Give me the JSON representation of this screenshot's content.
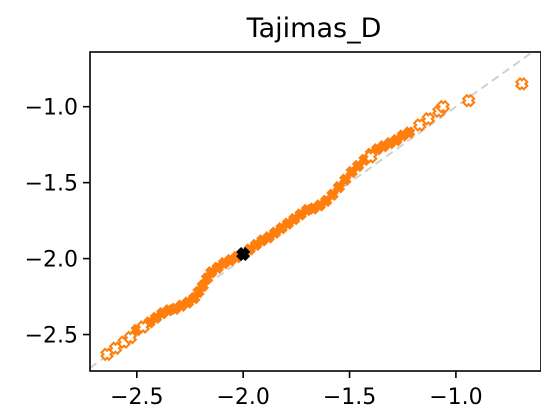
{
  "chart_data": {
    "type": "scatter",
    "title": "Tajimas_D",
    "xlabel": "",
    "ylabel": "",
    "xlim": [
      -2.72,
      -0.6
    ],
    "ylim": [
      -2.74,
      -0.64
    ],
    "x_ticks": [
      -2.5,
      -2.0,
      -1.5,
      -1.0
    ],
    "x_tick_labels": [
      "−2.5",
      "−2.0",
      "−1.5",
      "−1.0"
    ],
    "y_ticks": [
      -1.0,
      -1.5,
      -2.0,
      -2.5
    ],
    "y_tick_labels": [
      "−1.0",
      "−1.5",
      "−2.0",
      "−2.5"
    ],
    "grid": false,
    "reference_line": {
      "from": [
        -2.72,
        -2.72
      ],
      "to": [
        -0.65,
        -0.65
      ],
      "color": "#d0d0d0",
      "style": "dashed"
    },
    "colors": {
      "points": "#ff7f0e",
      "highlight": "#000000"
    },
    "series": [
      {
        "marker": "filled-x",
        "points": [
          [
            -2.5,
            -2.47
          ],
          [
            -2.47,
            -2.45
          ],
          [
            -2.44,
            -2.42
          ],
          [
            -2.41,
            -2.39
          ],
          [
            -2.38,
            -2.36
          ],
          [
            -2.35,
            -2.34
          ],
          [
            -2.32,
            -2.33
          ],
          [
            -2.29,
            -2.31
          ],
          [
            -2.26,
            -2.29
          ],
          [
            -2.23,
            -2.26
          ],
          [
            -2.21,
            -2.22
          ],
          [
            -2.19,
            -2.18
          ],
          [
            -2.17,
            -2.13
          ],
          [
            -2.15,
            -2.09
          ],
          [
            -2.12,
            -2.06
          ],
          [
            -2.09,
            -2.03
          ],
          [
            -2.06,
            -2.01
          ],
          [
            -2.03,
            -1.99
          ],
          [
            -2.0,
            -1.97
          ],
          [
            -1.97,
            -1.94
          ],
          [
            -1.94,
            -1.91
          ],
          [
            -1.91,
            -1.88
          ],
          [
            -1.88,
            -1.86
          ],
          [
            -1.85,
            -1.83
          ],
          [
            -1.82,
            -1.8
          ],
          [
            -1.79,
            -1.77
          ],
          [
            -1.76,
            -1.74
          ],
          [
            -1.73,
            -1.71
          ],
          [
            -1.7,
            -1.68
          ],
          [
            -1.67,
            -1.67
          ],
          [
            -1.64,
            -1.65
          ],
          [
            -1.61,
            -1.62
          ],
          [
            -1.58,
            -1.58
          ],
          [
            -1.55,
            -1.53
          ],
          [
            -1.52,
            -1.48
          ],
          [
            -1.49,
            -1.43
          ],
          [
            -1.46,
            -1.39
          ],
          [
            -1.43,
            -1.35
          ],
          [
            -1.4,
            -1.31
          ],
          [
            -1.37,
            -1.28
          ],
          [
            -1.34,
            -1.26
          ],
          [
            -1.31,
            -1.24
          ],
          [
            -1.28,
            -1.22
          ],
          [
            -1.25,
            -1.19
          ],
          [
            -1.22,
            -1.17
          ]
        ]
      },
      {
        "marker": "hollow-x",
        "points": [
          [
            -2.64,
            -2.63
          ],
          [
            -2.6,
            -2.59
          ],
          [
            -2.56,
            -2.55
          ],
          [
            -2.53,
            -2.52
          ],
          [
            -2.47,
            -2.45
          ],
          [
            -1.4,
            -1.33
          ],
          [
            -1.17,
            -1.12
          ],
          [
            -1.13,
            -1.08
          ],
          [
            -1.08,
            -1.03
          ],
          [
            -1.06,
            -1.0
          ],
          [
            -0.94,
            -0.96
          ],
          [
            -0.69,
            -0.85
          ]
        ]
      },
      {
        "marker": "filled-x-highlight",
        "points": [
          [
            -2.0,
            -1.97
          ]
        ]
      }
    ]
  }
}
